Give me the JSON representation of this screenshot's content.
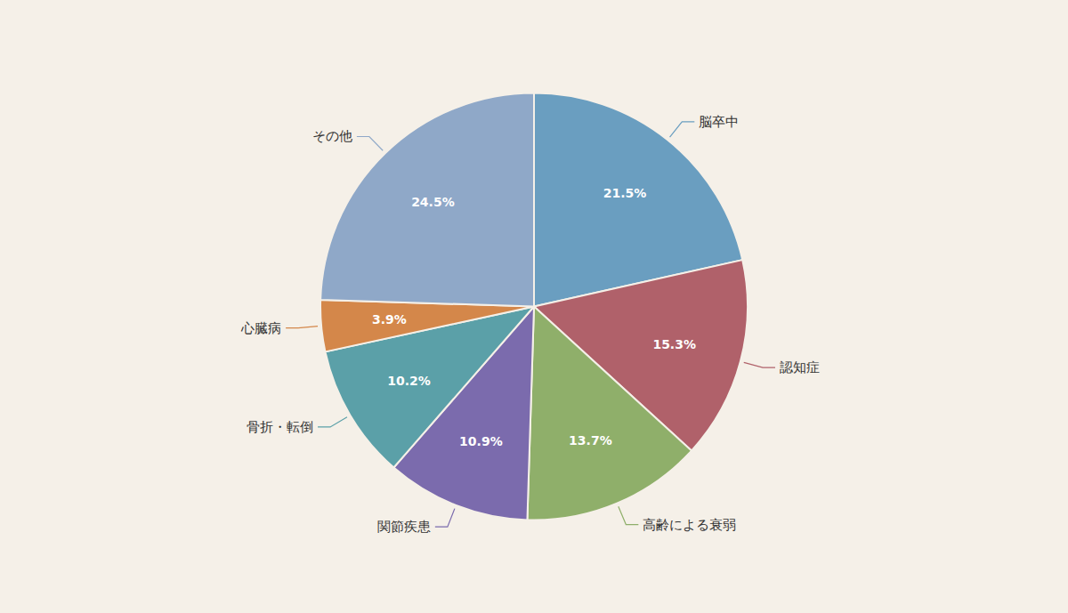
{
  "chart_data": {
    "type": "pie",
    "categories": [
      "脳卒中",
      "認知症",
      "高齢による衰弱",
      "関節疾患",
      "骨折・転倒",
      "心臓病",
      "その他"
    ],
    "values": [
      21.5,
      15.3,
      13.7,
      10.9,
      10.2,
      3.9,
      24.5
    ],
    "value_labels": [
      "21.5%",
      "15.3%",
      "13.7%",
      "10.9%",
      "10.2%",
      "3.9%",
      "24.5%"
    ],
    "colors": [
      "#6A9EC0",
      "#B0616A",
      "#8FAF6A",
      "#7B6BAD",
      "#5BA0A8",
      "#D4874A",
      "#8FA8C8"
    ],
    "data_labels": true
  }
}
